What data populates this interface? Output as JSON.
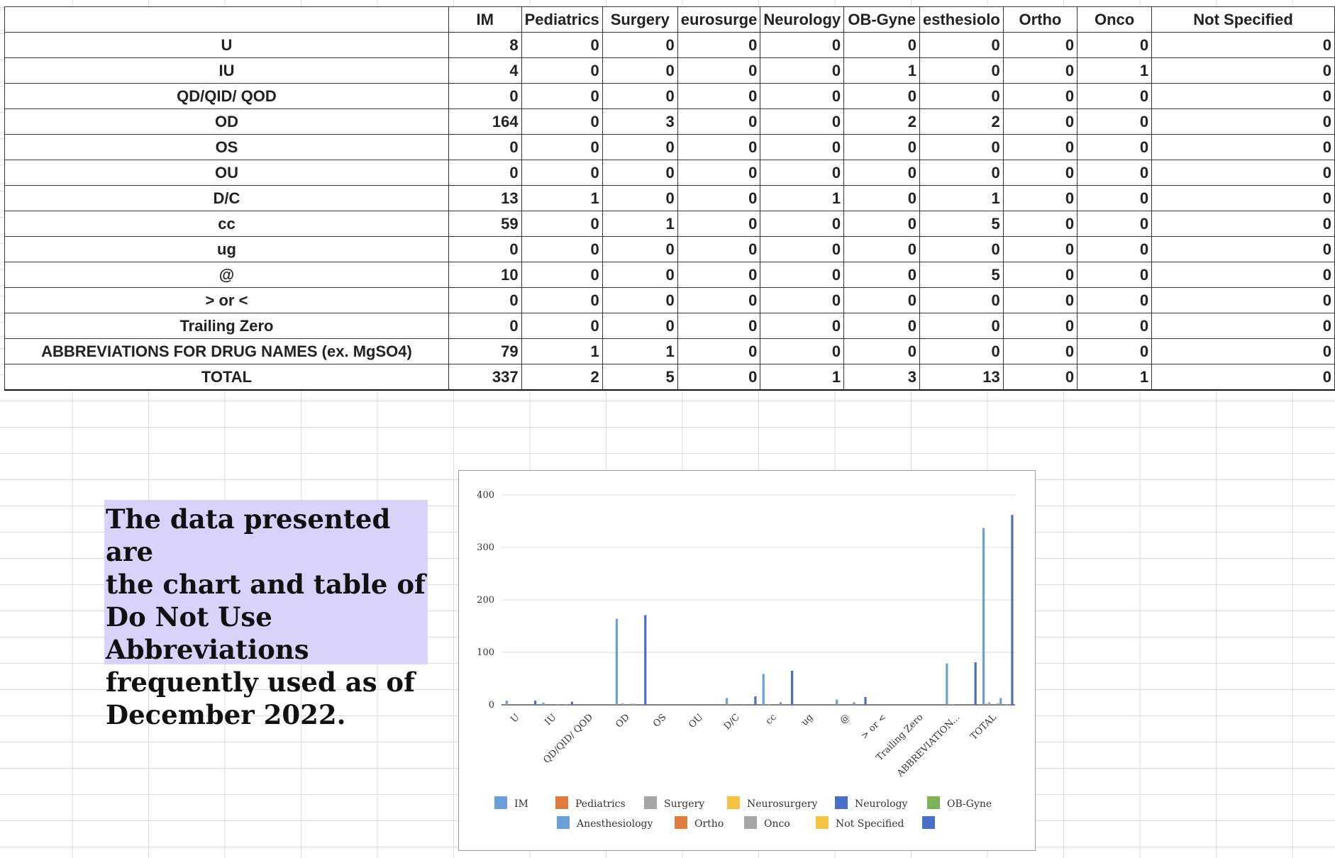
{
  "table": {
    "headers": [
      "",
      "IM",
      "Pediatrics",
      "Surgery",
      "eurosurge",
      "Neurology",
      "OB-Gyne",
      "esthesiolo",
      "Ortho",
      "Onco",
      "Not Specified"
    ],
    "rows": [
      {
        "label": "U",
        "values": [
          8,
          0,
          0,
          0,
          0,
          0,
          0,
          0,
          0,
          0
        ]
      },
      {
        "label": "IU",
        "values": [
          4,
          0,
          0,
          0,
          0,
          1,
          0,
          0,
          1,
          0
        ]
      },
      {
        "label": "QD/QID/ QOD",
        "values": [
          0,
          0,
          0,
          0,
          0,
          0,
          0,
          0,
          0,
          0
        ]
      },
      {
        "label": "OD",
        "values": [
          164,
          0,
          3,
          0,
          0,
          2,
          2,
          0,
          0,
          0
        ]
      },
      {
        "label": "OS",
        "values": [
          0,
          0,
          0,
          0,
          0,
          0,
          0,
          0,
          0,
          0
        ]
      },
      {
        "label": "OU",
        "values": [
          0,
          0,
          0,
          0,
          0,
          0,
          0,
          0,
          0,
          0
        ]
      },
      {
        "label": "D/C",
        "values": [
          13,
          1,
          0,
          0,
          1,
          0,
          1,
          0,
          0,
          0
        ]
      },
      {
        "label": "cc",
        "values": [
          59,
          0,
          1,
          0,
          0,
          0,
          5,
          0,
          0,
          0
        ]
      },
      {
        "label": "ug",
        "values": [
          0,
          0,
          0,
          0,
          0,
          0,
          0,
          0,
          0,
          0
        ]
      },
      {
        "label": "@",
        "values": [
          10,
          0,
          0,
          0,
          0,
          0,
          5,
          0,
          0,
          0
        ]
      },
      {
        "label": "> or <",
        "values": [
          0,
          0,
          0,
          0,
          0,
          0,
          0,
          0,
          0,
          0
        ]
      },
      {
        "label": "Trailing Zero",
        "values": [
          0,
          0,
          0,
          0,
          0,
          0,
          0,
          0,
          0,
          0
        ]
      },
      {
        "label": "ABBREVIATIONS FOR DRUG NAMES (ex. MgSO4)",
        "values": [
          79,
          1,
          1,
          0,
          0,
          0,
          0,
          0,
          0,
          0
        ]
      },
      {
        "label": "TOTAL",
        "values": [
          337,
          2,
          5,
          0,
          1,
          3,
          13,
          0,
          1,
          0
        ]
      }
    ]
  },
  "note": {
    "lines": [
      "The data presented are",
      "the chart and table of",
      "Do Not Use Abbreviations",
      "frequently used as of",
      "December 2022."
    ]
  },
  "chart_data": {
    "type": "bar",
    "title": "",
    "xlabel": "",
    "ylabel": "",
    "ylim": [
      0,
      400
    ],
    "yticks": [
      0,
      100,
      200,
      300,
      400
    ],
    "grid": true,
    "legend_position": "bottom",
    "categories": [
      "U",
      "IU",
      "QD/QID/ QOD",
      "OD",
      "OS",
      "OU",
      "D/C",
      "cc",
      "ug",
      "@",
      "> or <",
      "Trailing Zero",
      "ABBREVIATION...",
      "TOTAL"
    ],
    "series": [
      {
        "name": "IM",
        "color": "#6a9fdc",
        "values": [
          8,
          4,
          0,
          164,
          0,
          0,
          13,
          59,
          0,
          10,
          0,
          0,
          79,
          337
        ]
      },
      {
        "name": "Pediatrics",
        "color": "#e07b3c",
        "values": [
          0,
          0,
          0,
          0,
          0,
          0,
          1,
          0,
          0,
          0,
          0,
          0,
          1,
          2
        ]
      },
      {
        "name": "Surgery",
        "color": "#a5a5a5",
        "values": [
          0,
          0,
          0,
          3,
          0,
          0,
          0,
          1,
          0,
          0,
          0,
          0,
          1,
          5
        ]
      },
      {
        "name": "Neurosurgery",
        "color": "#f5c242",
        "values": [
          0,
          0,
          0,
          0,
          0,
          0,
          0,
          0,
          0,
          0,
          0,
          0,
          0,
          0
        ]
      },
      {
        "name": "Neurology",
        "color": "#4a6fc8",
        "values": [
          0,
          0,
          0,
          0,
          0,
          0,
          1,
          0,
          0,
          0,
          0,
          0,
          0,
          1
        ]
      },
      {
        "name": "OB-Gyne",
        "color": "#7cb356",
        "values": [
          0,
          1,
          0,
          2,
          0,
          0,
          0,
          0,
          0,
          0,
          0,
          0,
          0,
          3
        ]
      },
      {
        "name": "Anesthesiology",
        "color": "#6a9fdc",
        "values": [
          0,
          0,
          0,
          2,
          0,
          0,
          1,
          5,
          0,
          5,
          0,
          0,
          0,
          13
        ]
      },
      {
        "name": "Ortho",
        "color": "#e07b3c",
        "values": [
          0,
          0,
          0,
          0,
          0,
          0,
          0,
          0,
          0,
          0,
          0,
          0,
          0,
          0
        ]
      },
      {
        "name": "Onco",
        "color": "#a5a5a5",
        "values": [
          0,
          1,
          0,
          0,
          0,
          0,
          0,
          0,
          0,
          0,
          0,
          0,
          0,
          1
        ]
      },
      {
        "name": "Not Specified",
        "color": "#f5c242",
        "values": [
          0,
          0,
          0,
          0,
          0,
          0,
          0,
          0,
          0,
          0,
          0,
          0,
          0,
          0
        ]
      },
      {
        "color": "#4a6fc8",
        "values": [
          8,
          6,
          0,
          171,
          0,
          0,
          16,
          65,
          0,
          15,
          0,
          0,
          81,
          362
        ]
      }
    ]
  }
}
